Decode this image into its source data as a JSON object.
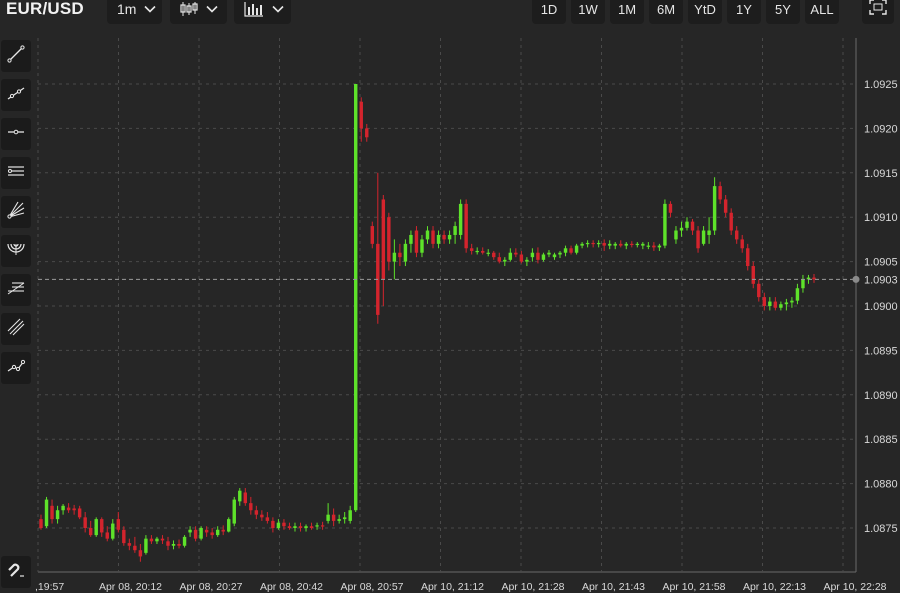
{
  "header": {
    "symbol": "EUR/USD",
    "interval": "1m",
    "chart_type_icon": "candlestick-icon",
    "indicators_icon": "bar-chart-icon",
    "ranges": [
      "1D",
      "1W",
      "1M",
      "6M",
      "YtD",
      "1Y",
      "5Y",
      "ALL"
    ],
    "fullscreen_icon": "fullscreen-icon"
  },
  "toolbar": {
    "tools": [
      "trend-line-icon",
      "ray-icon",
      "horizontal-line-icon",
      "parallel-channel-icon",
      "fib-fan-icon",
      "fib-arc-icon",
      "fib-retracement-icon",
      "pitchfork-icon",
      "polyline-icon"
    ],
    "magnet_icon": "magnet-icon"
  },
  "colors": {
    "background": "#262626",
    "up": "#5ee22a",
    "down": "#d4242d",
    "grid": "#4a4a4a",
    "last_price_line": "#9a9a9a"
  },
  "chart_data": {
    "type": "candlestick",
    "symbol": "EUR/USD",
    "interval": "1m",
    "ylim": [
      1.0871,
      1.0928
    ],
    "y_ticks": [
      "1.0925",
      "1.0920",
      "1.0915",
      "1.0910",
      "1.0905",
      "1.0900",
      "1.0895",
      "1.0890",
      "1.0885",
      "1.0880",
      "1.0875"
    ],
    "last_price": "1.0903",
    "x_ticks": [
      ",19:57",
      "Apr 08, 20:12",
      "Apr 08, 20:27",
      "Apr 08, 20:42",
      "Apr 08, 20:57",
      "Apr 10, 21:12",
      "Apr 10, 21:28",
      "Apr 10, 21:43",
      "Apr 10, 21:58",
      "Apr 10, 22:13",
      "Apr 10, 22:28"
    ],
    "grid": true,
    "candles": [
      [
        1.0876,
        1.08765,
        1.08748,
        1.0875
      ],
      [
        1.08752,
        1.08785,
        1.0875,
        1.08782
      ],
      [
        1.08775,
        1.08782,
        1.08755,
        1.0876
      ],
      [
        1.0876,
        1.08775,
        1.08755,
        1.0877
      ],
      [
        1.0877,
        1.08777,
        1.08765,
        1.08775
      ],
      [
        1.08773,
        1.08778,
        1.08767,
        1.0877
      ],
      [
        1.08772,
        1.08776,
        1.08765,
        1.0877
      ],
      [
        1.08772,
        1.08775,
        1.0876,
        1.08762
      ],
      [
        1.08762,
        1.08768,
        1.08745,
        1.0875
      ],
      [
        1.0875,
        1.08758,
        1.0874,
        1.08742
      ],
      [
        1.08742,
        1.08762,
        1.0874,
        1.0876
      ],
      [
        1.0876,
        1.08762,
        1.0874,
        1.08745
      ],
      [
        1.08745,
        1.08752,
        1.08735,
        1.08738
      ],
      [
        1.08738,
        1.0876,
        1.08736,
        1.08755
      ],
      [
        1.0876,
        1.08768,
        1.08745,
        1.08748
      ],
      [
        1.08748,
        1.08752,
        1.0873,
        1.08733
      ],
      [
        1.08733,
        1.08738,
        1.08725,
        1.0873
      ],
      [
        1.0873,
        1.0874,
        1.08722,
        1.08725
      ],
      [
        1.08725,
        1.08732,
        1.08712,
        1.08718
      ],
      [
        1.08722,
        1.08742,
        1.0872,
        1.08738
      ],
      [
        1.08738,
        1.08742,
        1.08732,
        1.08735
      ],
      [
        1.08735,
        1.0874,
        1.08732,
        1.08738
      ],
      [
        1.08738,
        1.08742,
        1.08732,
        1.08736
      ],
      [
        1.08735,
        1.0874,
        1.08725,
        1.0873
      ],
      [
        1.0873,
        1.08736,
        1.08726,
        1.08732
      ],
      [
        1.08732,
        1.08737,
        1.08727,
        1.0873
      ],
      [
        1.0873,
        1.08742,
        1.08728,
        1.0874
      ],
      [
        1.08745,
        1.08752,
        1.0874,
        1.08748
      ],
      [
        1.08748,
        1.08752,
        1.08735,
        1.08738
      ],
      [
        1.08738,
        1.08752,
        1.08736,
        1.0875
      ],
      [
        1.08748,
        1.08752,
        1.0874,
        1.08745
      ],
      [
        1.08745,
        1.0875,
        1.08738,
        1.08742
      ],
      [
        1.08742,
        1.08752,
        1.0874,
        1.08748
      ],
      [
        1.08748,
        1.08753,
        1.08742,
        1.08746
      ],
      [
        1.08746,
        1.08762,
        1.08745,
        1.0876
      ],
      [
        1.08755,
        1.08785,
        1.08752,
        1.08782
      ],
      [
        1.0878,
        1.08795,
        1.08775,
        1.08792
      ],
      [
        1.0879,
        1.08795,
        1.08775,
        1.08778
      ],
      [
        1.08778,
        1.08785,
        1.08765,
        1.0877
      ],
      [
        1.0877,
        1.08775,
        1.0876,
        1.08765
      ],
      [
        1.08765,
        1.0877,
        1.08758,
        1.08762
      ],
      [
        1.08762,
        1.08768,
        1.08755,
        1.08758
      ],
      [
        1.08758,
        1.08762,
        1.08745,
        1.0875
      ],
      [
        1.0875,
        1.0876,
        1.08748,
        1.08756
      ],
      [
        1.08756,
        1.0876,
        1.08748,
        1.08752
      ],
      [
        1.08752,
        1.08756,
        1.08748,
        1.0875
      ],
      [
        1.0875,
        1.08756,
        1.08746,
        1.08752
      ],
      [
        1.08752,
        1.08756,
        1.08746,
        1.0875
      ],
      [
        1.0875,
        1.08754,
        1.08746,
        1.08752
      ],
      [
        1.08752,
        1.08756,
        1.08748,
        1.0875
      ],
      [
        1.08752,
        1.08756,
        1.08748,
        1.08753
      ],
      [
        1.08753,
        1.08757,
        1.08748,
        1.08752
      ],
      [
        1.08758,
        1.08778,
        1.08755,
        1.08765
      ],
      [
        1.08765,
        1.08772,
        1.08752,
        1.08758
      ],
      [
        1.08758,
        1.08765,
        1.08755,
        1.0876
      ],
      [
        1.0876,
        1.08768,
        1.08755,
        1.08762
      ],
      [
        1.08758,
        1.08775,
        1.08755,
        1.0877
      ],
      [
        1.0877,
        1.0925,
        1.08768,
        1.0925
      ],
      [
        1.0923,
        1.09235,
        1.09185,
        1.092
      ],
      [
        1.092,
        1.09205,
        1.09185,
        1.0919
      ],
      [
        1.0909,
        1.09095,
        1.09065,
        1.0907
      ],
      [
        1.0907,
        1.0915,
        1.0898,
        1.0899
      ],
      [
        1.0912,
        1.09125,
        1.09,
        1.0903
      ],
      [
        1.091,
        1.09105,
        1.0904,
        1.0905
      ],
      [
        1.0905,
        1.09075,
        1.0903,
        1.0906
      ],
      [
        1.0906,
        1.0907,
        1.09045,
        1.09055
      ],
      [
        1.0905,
        1.09075,
        1.09045,
        1.0907
      ],
      [
        1.0907,
        1.09085,
        1.0906,
        1.0908
      ],
      [
        1.09085,
        1.0909,
        1.09055,
        1.0906
      ],
      [
        1.0906,
        1.0908,
        1.09055,
        1.09075
      ],
      [
        1.09075,
        1.0909,
        1.0907,
        1.09085
      ],
      [
        1.09085,
        1.0909,
        1.09065,
        1.0907
      ],
      [
        1.0907,
        1.09085,
        1.09065,
        1.0908
      ],
      [
        1.0908,
        1.09085,
        1.0907,
        1.09075
      ],
      [
        1.09075,
        1.09085,
        1.0907,
        1.0908
      ],
      [
        1.0908,
        1.09095,
        1.0907,
        1.0909
      ],
      [
        1.0908,
        1.0912,
        1.09075,
        1.09115
      ],
      [
        1.09115,
        1.0912,
        1.0906,
        1.09065
      ],
      [
        1.09065,
        1.0907,
        1.09058,
        1.09062
      ],
      [
        1.09062,
        1.09066,
        1.09058,
        1.09062
      ],
      [
        1.09062,
        1.09066,
        1.09058,
        1.0906
      ],
      [
        1.0906,
        1.09064,
        1.09056,
        1.0906
      ],
      [
        1.0906,
        1.09062,
        1.09052,
        1.09055
      ],
      [
        1.09055,
        1.0906,
        1.09048,
        1.0905
      ],
      [
        1.0905,
        1.09055,
        1.09045,
        1.09052
      ],
      [
        1.09052,
        1.09065,
        1.0905,
        1.0906
      ],
      [
        1.0906,
        1.09065,
        1.09055,
        1.09058
      ],
      [
        1.09058,
        1.09062,
        1.09048,
        1.0905
      ],
      [
        1.0905,
        1.09055,
        1.09045,
        1.09052
      ],
      [
        1.09055,
        1.09065,
        1.0905,
        1.0906
      ],
      [
        1.0906,
        1.09066,
        1.09048,
        1.09052
      ],
      [
        1.09052,
        1.0906,
        1.0905,
        1.09058
      ],
      [
        1.09058,
        1.09063,
        1.09055,
        1.0906
      ],
      [
        1.09055,
        1.0906,
        1.09052,
        1.09058
      ],
      [
        1.09058,
        1.09062,
        1.09054,
        1.0906
      ],
      [
        1.0906,
        1.09068,
        1.09056,
        1.09065
      ],
      [
        1.09065,
        1.09068,
        1.09058,
        1.0906
      ],
      [
        1.0906,
        1.0907,
        1.09058,
        1.09068
      ],
      [
        1.09068,
        1.09072,
        1.09065,
        1.0907
      ],
      [
        1.0907,
        1.09074,
        1.09066,
        1.09071
      ],
      [
        1.09071,
        1.09074,
        1.09066,
        1.0907
      ],
      [
        1.0907,
        1.09074,
        1.09066,
        1.09071
      ],
      [
        1.09071,
        1.09075,
        1.09062,
        1.09068
      ],
      [
        1.09068,
        1.09074,
        1.09064,
        1.0907
      ],
      [
        1.09068,
        1.09072,
        1.09064,
        1.0907
      ],
      [
        1.0907,
        1.09074,
        1.09066,
        1.09068
      ],
      [
        1.09068,
        1.09072,
        1.09064,
        1.0907
      ],
      [
        1.0907,
        1.09073,
        1.09066,
        1.09069
      ],
      [
        1.09069,
        1.09072,
        1.09066,
        1.0907
      ],
      [
        1.09068,
        1.09072,
        1.09064,
        1.0907
      ],
      [
        1.09068,
        1.09072,
        1.09064,
        1.09068
      ],
      [
        1.09068,
        1.09072,
        1.09062,
        1.09066
      ],
      [
        1.09066,
        1.0907,
        1.09062,
        1.09068
      ],
      [
        1.09068,
        1.0912,
        1.09065,
        1.09115
      ],
      [
        1.09115,
        1.09118,
        1.091,
        1.09105
      ],
      [
        1.09075,
        1.0909,
        1.0907,
        1.09085
      ],
      [
        1.09085,
        1.09095,
        1.09078,
        1.09088
      ],
      [
        1.09088,
        1.091,
        1.09085,
        1.09095
      ],
      [
        1.09095,
        1.09098,
        1.0908,
        1.09085
      ],
      [
        1.09085,
        1.0909,
        1.0906,
        1.09065
      ],
      [
        1.0907,
        1.0909,
        1.09068,
        1.09085
      ],
      [
        1.0908,
        1.091,
        1.0907,
        1.09085
      ],
      [
        1.09085,
        1.09145,
        1.0908,
        1.09135
      ],
      [
        1.09135,
        1.0914,
        1.09115,
        1.0912
      ],
      [
        1.0912,
        1.09125,
        1.091,
        1.09105
      ],
      [
        1.09105,
        1.0911,
        1.0908,
        1.09085
      ],
      [
        1.09085,
        1.0909,
        1.0907,
        1.09075
      ],
      [
        1.09075,
        1.0908,
        1.0906,
        1.09065
      ],
      [
        1.09065,
        1.0907,
        1.0904,
        1.09045
      ],
      [
        1.09045,
        1.0905,
        1.0902,
        1.09025
      ],
      [
        1.09025,
        1.0903,
        1.09005,
        1.0901
      ],
      [
        1.0901,
        1.09015,
        1.08995,
        1.09
      ],
      [
        1.09,
        1.0901,
        1.08995,
        1.09005
      ],
      [
        1.09005,
        1.0901,
        1.08995,
        1.08998
      ],
      [
        1.08998,
        1.09005,
        1.08995,
        1.09002
      ],
      [
        1.09002,
        1.09008,
        1.08995,
        1.09004
      ],
      [
        1.09004,
        1.0901,
        1.08998,
        1.09006
      ],
      [
        1.09006,
        1.09025,
        1.09002,
        1.0902
      ],
      [
        1.0902,
        1.09035,
        1.09015,
        1.0903
      ],
      [
        1.0903,
        1.09035,
        1.09025,
        1.09032
      ],
      [
        1.09032,
        1.09036,
        1.09026,
        1.0903
      ]
    ]
  }
}
